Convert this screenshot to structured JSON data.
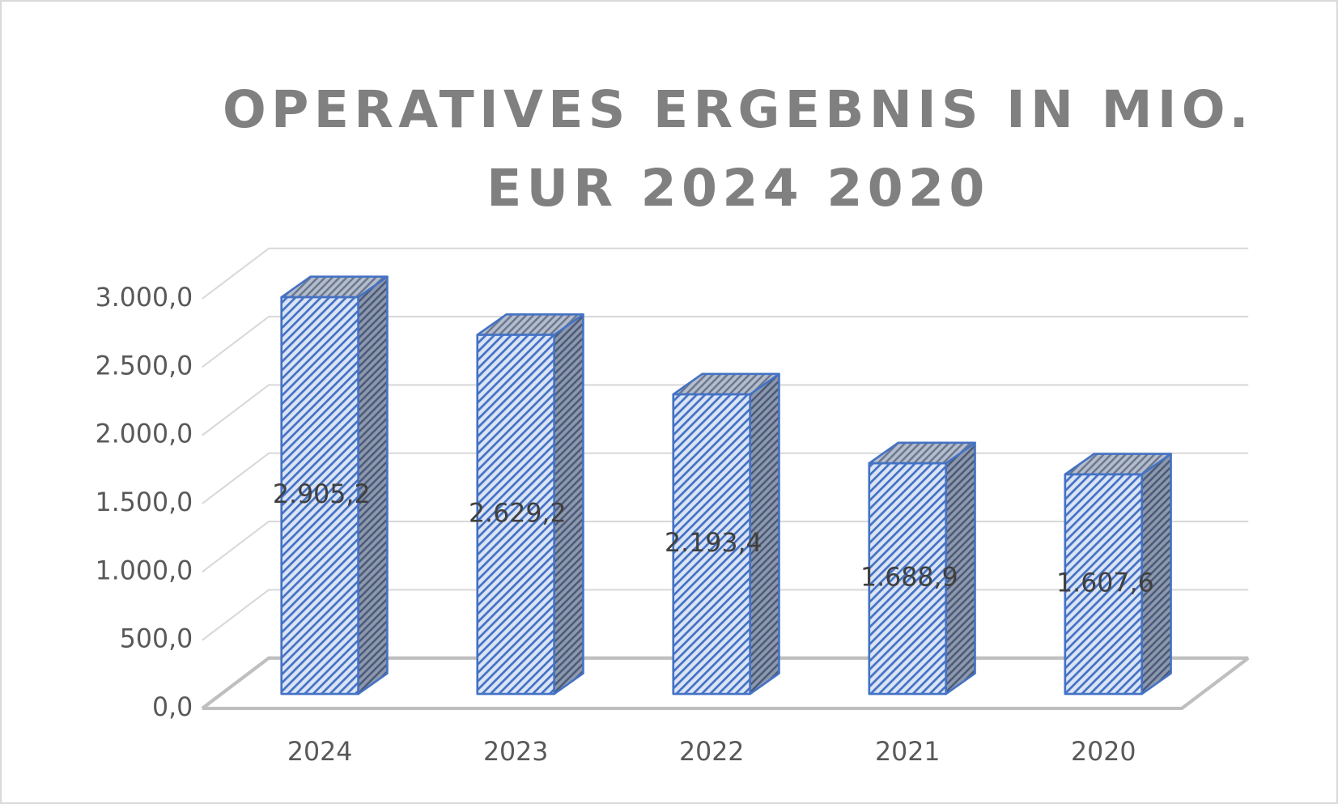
{
  "chart_data": {
    "type": "bar3d",
    "title": "OPERATIVES ERGEBNIS IN MIO. EUR 2024 2020",
    "categories": [
      "2024",
      "2023",
      "2022",
      "2021",
      "2020"
    ],
    "values": [
      2905.2,
      2629.2,
      2193.4,
      1688.9,
      1607.6
    ],
    "value_labels": [
      "2.905,2",
      "2.629,2",
      "2.193,4",
      "1.688,9",
      "1.607,6"
    ],
    "color": "#4472c4",
    "ylim": [
      0,
      3000
    ],
    "yticks": [
      {
        "value": 0,
        "label": "0,0"
      },
      {
        "value": 500,
        "label": "500,0"
      },
      {
        "value": 1000,
        "label": "1.000,0"
      },
      {
        "value": 1500,
        "label": "1.500,0"
      },
      {
        "value": 2000,
        "label": "2.000,0"
      },
      {
        "value": 2500,
        "label": "2.500,0"
      },
      {
        "value": 3000,
        "label": "3.000,0"
      }
    ],
    "grid": true
  }
}
